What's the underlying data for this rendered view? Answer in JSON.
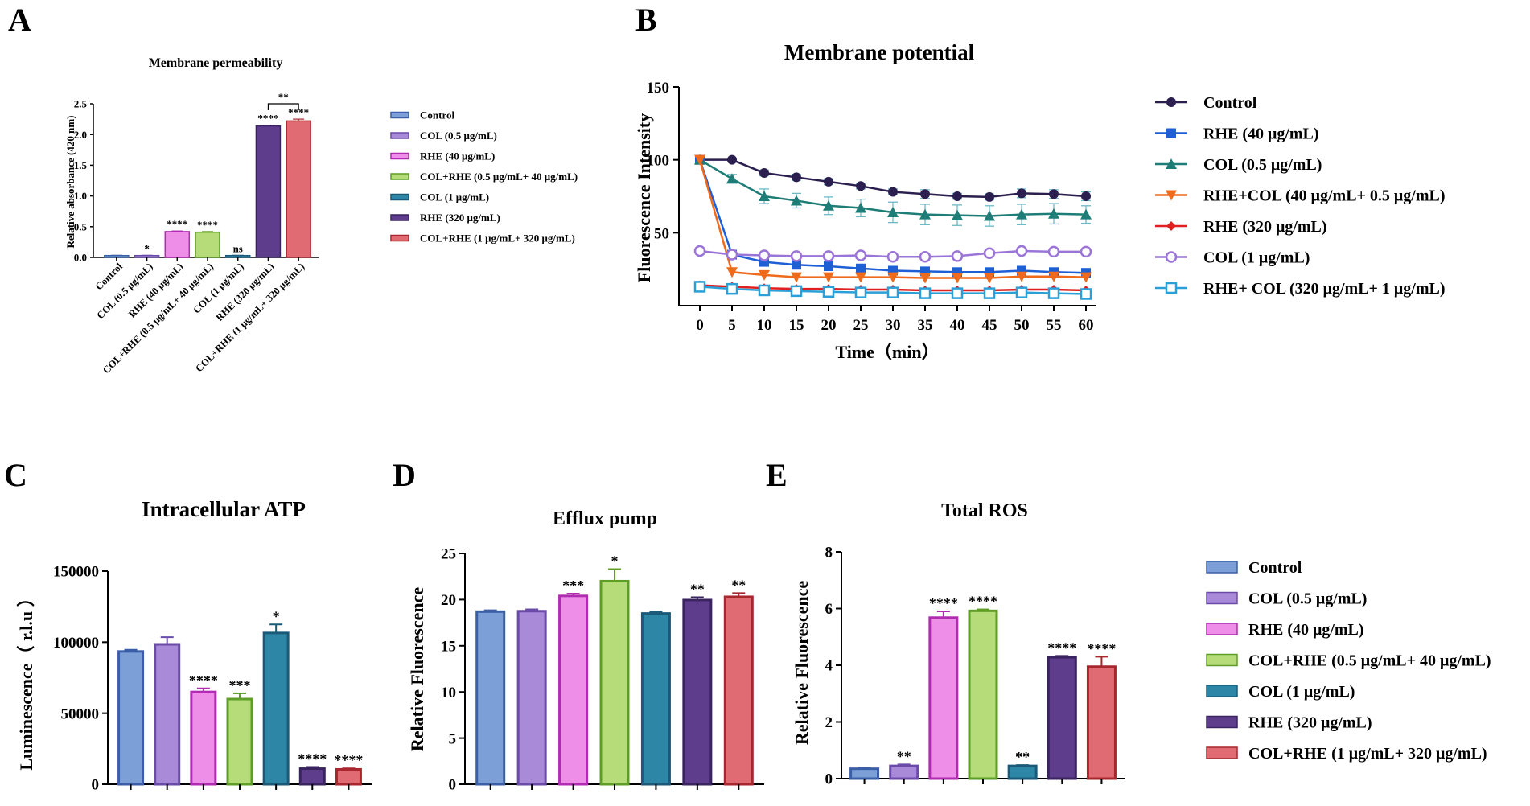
{
  "chart_data": [
    {
      "panel": "A",
      "type": "bar",
      "title": "Membrane permeability",
      "ylabel": "Relative absorbance (420 nm)",
      "xlabel": "",
      "ylim": [
        0,
        2.5
      ],
      "yticks": [
        "0.0",
        "0.5",
        "1.0",
        "1.5",
        "2.0",
        "2.5"
      ],
      "categories": [
        "Control",
        "COL (0.5 μg/mL)",
        "RHE (40 μg/mL)",
        "COL+RHE (0.5 μg/mL+ 40 μg/mL)",
        "COL (1 μg/mL)",
        "RHE (320 μg/mL)",
        "COL+RHE (1 μg/mL+ 320 μg/mL)"
      ],
      "values": [
        0.03,
        0.03,
        0.42,
        0.41,
        0.03,
        2.14,
        2.22
      ],
      "errors": [
        0.005,
        0.005,
        0.01,
        0.01,
        0.005,
        0.01,
        0.03
      ],
      "significance": [
        "",
        "*",
        "****",
        "****",
        "ns",
        "****",
        "****"
      ],
      "bracket": {
        "from": 5,
        "to": 6,
        "label": "**"
      },
      "legend": [
        "Control",
        "COL (0.5 μg/mL)",
        "RHE (40 μg/mL)",
        "COL+RHE (0.5 μg/mL+ 40 μg/mL)",
        "COL (1 μg/mL)",
        "RHE (320 μg/mL)",
        "COL+RHE (1 μg/mL+ 320 μg/mL)"
      ],
      "legend_position": "right"
    },
    {
      "panel": "B",
      "type": "line",
      "title": "Membrane potential",
      "xlabel": "Time（min）",
      "ylabel": "Fluorescence Intensity",
      "x": [
        0,
        5,
        10,
        15,
        20,
        25,
        30,
        35,
        40,
        45,
        50,
        55,
        60
      ],
      "xticks": [
        "0",
        "5",
        "10",
        "15",
        "20",
        "25",
        "30",
        "35",
        "40",
        "45",
        "50",
        "55",
        "60"
      ],
      "ylim": [
        0,
        150
      ],
      "yticks": [
        "50",
        "100",
        "150"
      ],
      "series": [
        {
          "name": "Control",
          "color": "#2a1f4e",
          "marker": "circle",
          "values": [
            100,
            100,
            91,
            88,
            85,
            82,
            78,
            76.5,
            75,
            74.5,
            77,
            76.5,
            75
          ],
          "errors": [
            1,
            1,
            2,
            2,
            2,
            2,
            2,
            3,
            2,
            2,
            3,
            3,
            3
          ]
        },
        {
          "name": "RHE (40 μg/mL)",
          "color": "#1f5fd6",
          "marker": "square",
          "values": [
            100,
            35,
            30,
            28,
            27,
            25.5,
            24,
            23.5,
            23,
            23,
            24,
            23,
            22.5
          ],
          "errors": [
            1,
            2,
            2,
            2,
            2,
            2,
            1,
            1,
            1,
            1,
            1,
            1,
            1
          ]
        },
        {
          "name": "COL (0.5 μg/mL)",
          "color": "#1e7d76",
          "marker": "triangle",
          "values": [
            100,
            87,
            75,
            72,
            68.5,
            67,
            64,
            62.5,
            62,
            61.5,
            62.5,
            63,
            62.5
          ],
          "errors": [
            1,
            3,
            5,
            5,
            6,
            6,
            7,
            7,
            7,
            7,
            7,
            7,
            6
          ]
        },
        {
          "name": "RHE+COL (40 μg/mL+ 0.5 μg/mL)",
          "color": "#f06a1c",
          "marker": "triangle-down",
          "values": [
            100,
            23,
            21,
            19.5,
            19.5,
            19.5,
            19.5,
            19,
            19,
            19,
            20,
            20,
            19.5
          ],
          "errors": [
            1,
            1,
            1,
            1,
            1,
            1,
            1,
            1,
            1,
            1,
            1,
            1,
            1
          ]
        },
        {
          "name": "RHE (320 μg/mL)",
          "color": "#e02020",
          "marker": "diamond",
          "values": [
            14,
            13,
            12,
            11.5,
            11.5,
            11,
            11,
            10.5,
            10.5,
            10.5,
            11,
            11,
            10.5
          ],
          "errors": [
            1,
            1,
            1,
            1,
            1,
            1,
            1,
            1,
            1,
            1,
            1,
            1,
            1
          ]
        },
        {
          "name": "COL (1 μg/mL)",
          "color": "#9a74d6",
          "marker": "circle-open",
          "values": [
            37.5,
            35,
            34.5,
            34,
            34,
            34.5,
            33.5,
            33.5,
            34,
            36,
            37.5,
            37,
            37
          ],
          "errors": [
            1,
            1,
            1,
            1,
            1,
            1,
            1,
            1,
            1,
            1,
            1,
            1,
            1
          ]
        },
        {
          "name": "RHE+ COL (320 μg/mL+ 1 μg/mL)",
          "color": "#2a9fd8",
          "marker": "square-open",
          "values": [
            13,
            11.5,
            10.5,
            10,
            9.5,
            9,
            9,
            8.5,
            8.5,
            8.5,
            9,
            8.5,
            8
          ],
          "errors": [
            1,
            1,
            1,
            1,
            1,
            1,
            1,
            1,
            1,
            1,
            1,
            1,
            1
          ]
        }
      ],
      "legend_position": "right"
    },
    {
      "panel": "C",
      "type": "bar",
      "title": "Intracellular ATP",
      "ylabel": "Luminescence（ r.l.u ）",
      "ylim": [
        0,
        150000
      ],
      "yticks": [
        "0",
        "50000",
        "100000",
        "150000"
      ],
      "values": [
        93500,
        98500,
        65000,
        60000,
        106500,
        11000,
        10500
      ],
      "errors": [
        1200,
        5000,
        2500,
        4000,
        6000,
        1200,
        700
      ],
      "significance": [
        "",
        "",
        "****",
        "***",
        "*",
        "****",
        "****"
      ]
    },
    {
      "panel": "D",
      "type": "bar",
      "title": "Efflux pump",
      "ylabel": "Relative Fluorescence",
      "ylim": [
        0,
        25
      ],
      "yticks": [
        "0",
        "5",
        "10",
        "15",
        "20",
        "25"
      ],
      "values": [
        18.7,
        18.75,
        20.4,
        22.0,
        18.5,
        19.95,
        20.3
      ],
      "errors": [
        0.15,
        0.2,
        0.25,
        1.3,
        0.2,
        0.3,
        0.4
      ],
      "significance": [
        "",
        "",
        "***",
        "*",
        "",
        "**",
        "**"
      ]
    },
    {
      "panel": "E",
      "type": "bar",
      "title": "Total ROS",
      "ylabel": "Relative Fluorescence",
      "ylim": [
        0,
        8
      ],
      "yticks": [
        "0",
        "2",
        "4",
        "6",
        "8"
      ],
      "values": [
        0.35,
        0.45,
        5.68,
        5.92,
        0.45,
        4.28,
        3.95
      ],
      "errors": [
        0.03,
        0.05,
        0.22,
        0.05,
        0.03,
        0.05,
        0.35
      ],
      "significance": [
        "",
        "**",
        "****",
        "****",
        "**",
        "****",
        "****"
      ],
      "legend": [
        "Control",
        "COL (0.5 μg/mL)",
        "RHE (40 μg/mL)",
        "COL+RHE (0.5 μg/mL+ 40 μg/mL)",
        "COL (1 μg/mL)",
        "RHE (320 μg/mL)",
        "COL+RHE (1 μg/mL+ 320 μg/mL)"
      ],
      "legend_position": "right"
    }
  ],
  "group_colors": [
    {
      "fill": "#7b9fd6",
      "stroke": "#3a5fa6"
    },
    {
      "fill": "#a98ad8",
      "stroke": "#6a4ba8"
    },
    {
      "fill": "#ee8ee8",
      "stroke": "#b02cb0"
    },
    {
      "fill": "#b5dc78",
      "stroke": "#5e9e26"
    },
    {
      "fill": "#2e86a6",
      "stroke": "#1a5a78"
    },
    {
      "fill": "#5e3e8c",
      "stroke": "#3a2460"
    },
    {
      "fill": "#e06b72",
      "stroke": "#a8262e"
    }
  ],
  "panel_letters": [
    "A",
    "B",
    "C",
    "D",
    "E"
  ]
}
